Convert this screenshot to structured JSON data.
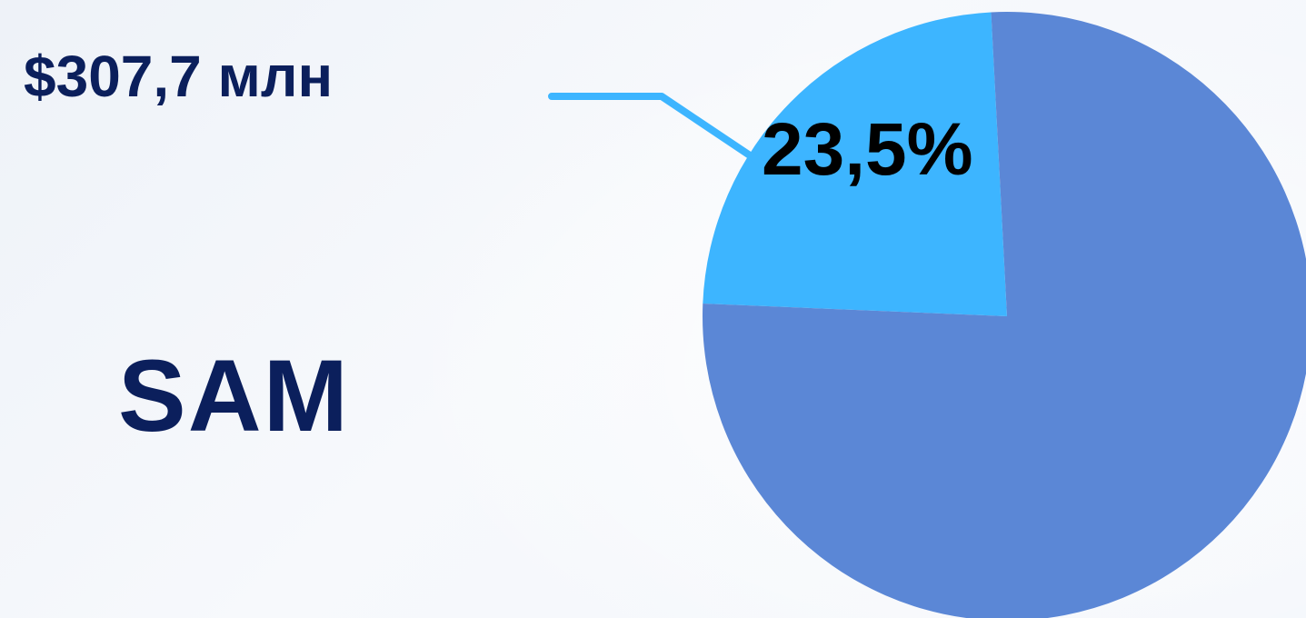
{
  "chart_data": {
    "type": "pie",
    "slices": [
      {
        "label": "SAM",
        "value": 23.5,
        "display": "23,5%",
        "color": "#3db5ff"
      },
      {
        "label": "",
        "value": 76.5,
        "display": "",
        "color": "#5b87d6"
      }
    ],
    "callout_value": "$307,7 млн",
    "title": "SAM"
  },
  "colors": {
    "text": "#0b1f5c",
    "leader_line": "#3db5ff"
  }
}
